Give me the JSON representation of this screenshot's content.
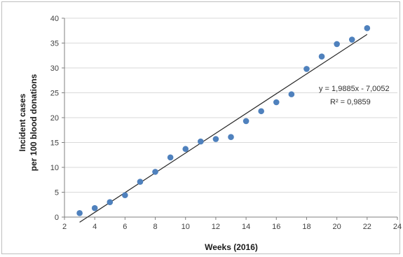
{
  "chart_data": {
    "type": "scatter",
    "title": "",
    "xlabel": "Weeks (2016)",
    "ylabel_lines": [
      "Incident cases",
      "per 100 blood donations"
    ],
    "xlim": [
      2,
      24
    ],
    "ylim": [
      0,
      40
    ],
    "xticks": [
      2,
      4,
      6,
      8,
      10,
      12,
      14,
      16,
      18,
      20,
      22,
      24
    ],
    "yticks": [
      0,
      5,
      10,
      15,
      20,
      25,
      30,
      35,
      40
    ],
    "grid": "horizontal",
    "points": [
      {
        "x": 3,
        "y": 0.8
      },
      {
        "x": 4,
        "y": 1.8
      },
      {
        "x": 5,
        "y": 3.0
      },
      {
        "x": 6,
        "y": 4.4
      },
      {
        "x": 7,
        "y": 7.1
      },
      {
        "x": 8,
        "y": 9.1
      },
      {
        "x": 9,
        "y": 12.0
      },
      {
        "x": 10,
        "y": 13.7
      },
      {
        "x": 11,
        "y": 15.2
      },
      {
        "x": 12,
        "y": 15.7
      },
      {
        "x": 13,
        "y": 16.1
      },
      {
        "x": 14,
        "y": 19.3
      },
      {
        "x": 15,
        "y": 21.3
      },
      {
        "x": 16,
        "y": 23.1
      },
      {
        "x": 17,
        "y": 24.7
      },
      {
        "x": 18,
        "y": 29.8
      },
      {
        "x": 19,
        "y": 32.3
      },
      {
        "x": 20,
        "y": 34.8
      },
      {
        "x": 21,
        "y": 35.7
      },
      {
        "x": 22,
        "y": 38.0
      }
    ],
    "trendline": {
      "slope": 1.9885,
      "intercept": -7.0052,
      "x_range": [
        3,
        22
      ],
      "equation_label": "y = 1,9885x - 7,0052",
      "r2_label": "R² = 0,9859"
    },
    "marker_color": "#4f81bd",
    "trendline_color": "#262626",
    "grid_color": "#d9d9d9"
  }
}
